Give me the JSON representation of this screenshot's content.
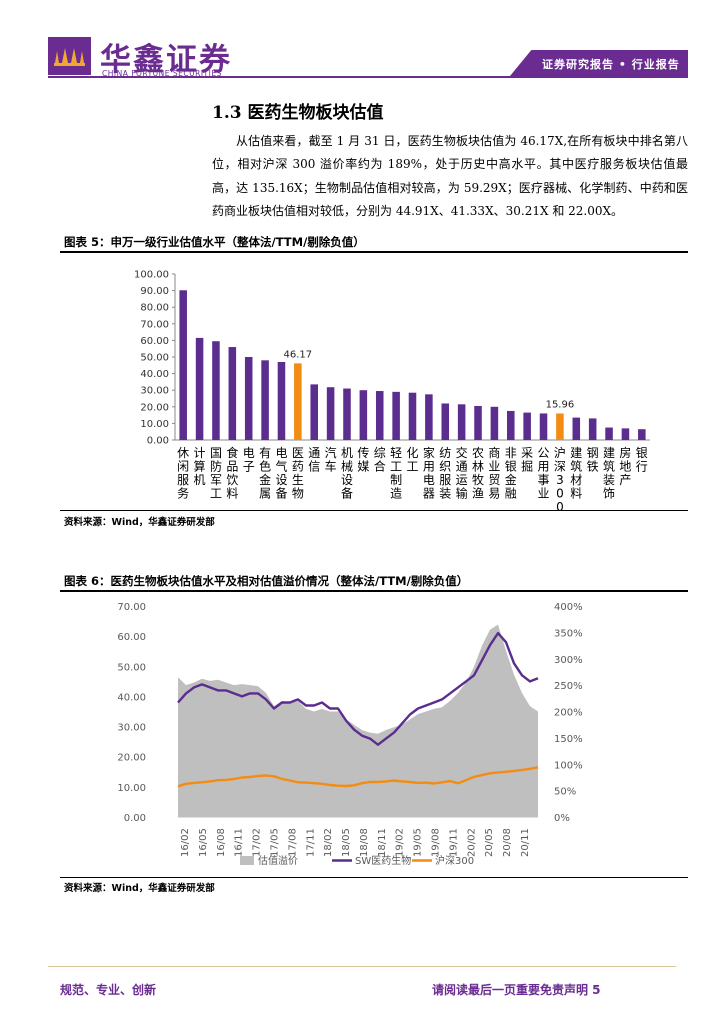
{
  "header": {
    "logo_cn": "华鑫证券",
    "logo_en": "CHINA FORTUNE SECURITIES",
    "report_type": "证券研究报告 • 行业报告",
    "brand_color": "#6a2c91"
  },
  "section": {
    "title": "1.3 医药生物板块估值",
    "paragraph": "从估值来看，截至 1 月 31 日，医药生物板块估值为 46.17X,在所有板块中排名第八位，相对沪深 300 溢价率约为 189%，处于历史中高水平。其中医疗服务板块估值最高，达 135.16X；生物制品估值相对较高，为 59.29X；医疗器械、化学制药、中药和医药商业板块估值相对较低，分别为 44.91X、41.33X、30.21X 和 22.00X。"
  },
  "figure5": {
    "title": "图表 5：申万一级行业估值水平（整体法/TTM/剔除负值）",
    "source": "资料来源：Wind，华鑫证券研发部"
  },
  "figure6": {
    "title": "图表 6：医药生物板块估值水平及相对估值溢价情况（整体法/TTM/剔除负值）",
    "source": "资料来源：Wind，华鑫证券研发部"
  },
  "footer": {
    "left": "规范、专业、创新",
    "right": "请阅读最后一页重要免责声明 5"
  },
  "chart_data": [
    {
      "type": "bar",
      "ylim": [
        0,
        100
      ],
      "y_ticks": [
        "0.00",
        "10.00",
        "20.00",
        "30.00",
        "40.00",
        "50.00",
        "60.00",
        "70.00",
        "80.00",
        "90.00",
        "100.00"
      ],
      "categories": [
        "休闲服务",
        "计算机",
        "国防军工",
        "食品饮料",
        "电子",
        "有色金属",
        "电气设备",
        "医药生物",
        "通信",
        "汽车",
        "机械设备",
        "传媒",
        "综合",
        "轻工制造",
        "化工",
        "家用电器",
        "纺织服装",
        "交通运输",
        "农林牧渔",
        "商业贸易",
        "非银金融",
        "采掘",
        "公用事业",
        "沪深300",
        "建筑材料",
        "钢铁",
        "建筑装饰",
        "房地产",
        "银行"
      ],
      "values": [
        90.2,
        61.5,
        59.5,
        56.0,
        50.0,
        48.0,
        47.0,
        46.17,
        33.5,
        31.8,
        31.0,
        30.0,
        29.5,
        29.0,
        28.5,
        27.5,
        22.0,
        21.5,
        20.5,
        20.0,
        17.5,
        16.5,
        16.0,
        15.96,
        13.5,
        13.0,
        7.5,
        7.0,
        6.5
      ],
      "highlight": {
        "医药生物": "46.17",
        "沪深300": "15.96"
      },
      "colors": {
        "bar": "#5b2d8e",
        "highlight": "#f28c13"
      }
    },
    {
      "type": "area",
      "left_ylim": [
        0,
        70
      ],
      "right_ylim": [
        0,
        400
      ],
      "left_ticks": [
        "0.00",
        "10.00",
        "20.00",
        "30.00",
        "40.00",
        "50.00",
        "60.00",
        "70.00"
      ],
      "right_ticks": [
        "0%",
        "50%",
        "100%",
        "150%",
        "200%",
        "250%",
        "300%",
        "350%",
        "400%"
      ],
      "x_ticks": [
        "16/02",
        "16/05",
        "16/08",
        "16/11",
        "17/02",
        "17/05",
        "17/08",
        "17/11",
        "18/02",
        "18/05",
        "18/08",
        "18/11",
        "19/02",
        "19/05",
        "19/08",
        "19/11",
        "20/02",
        "20/05",
        "20/08",
        "20/11"
      ],
      "legend": [
        "估值溢价",
        "SW医药生物",
        "沪深300"
      ],
      "series": [
        {
          "name": "估值溢价",
          "axis": "right",
          "color": "#bfbfbf",
          "values": [
            265,
            250,
            255,
            262,
            258,
            260,
            255,
            250,
            252,
            250,
            248,
            235,
            210,
            220,
            215,
            220,
            205,
            200,
            205,
            200,
            200,
            185,
            175,
            165,
            160,
            158,
            165,
            170,
            175,
            185,
            195,
            200,
            205,
            208,
            220,
            235,
            255,
            285,
            325,
            355,
            365,
            315,
            270,
            235,
            210,
            200
          ]
        },
        {
          "name": "SW医药生物",
          "axis": "left",
          "color": "#5b2d8e",
          "values": [
            38,
            41,
            43,
            44,
            43,
            42,
            42,
            41,
            40,
            41,
            41,
            39,
            36,
            38,
            38,
            39,
            37,
            37,
            38,
            36,
            36,
            32,
            29,
            27,
            26,
            24,
            26,
            28,
            31,
            34,
            36,
            37,
            38,
            39,
            41,
            43,
            45,
            47,
            52,
            57,
            61,
            58,
            51,
            47,
            45,
            46
          ]
        },
        {
          "name": "沪深300",
          "axis": "left",
          "color": "#f28c13",
          "values": [
            10.2,
            11,
            11.3,
            11.5,
            11.8,
            12.2,
            12.3,
            12.6,
            13.1,
            13.3,
            13.6,
            13.8,
            13.5,
            12.6,
            12.1,
            11.5,
            11.4,
            11.2,
            11,
            10.6,
            10.4,
            10.3,
            10.5,
            11.2,
            11.6,
            11.6,
            11.8,
            12.1,
            11.8,
            11.6,
            11.3,
            11.4,
            11.1,
            11.5,
            11.9,
            11.2,
            12.2,
            13.3,
            13.9,
            14.5,
            14.8,
            15.0,
            15.3,
            15.6,
            16.0,
            16.5
          ]
        }
      ]
    }
  ]
}
